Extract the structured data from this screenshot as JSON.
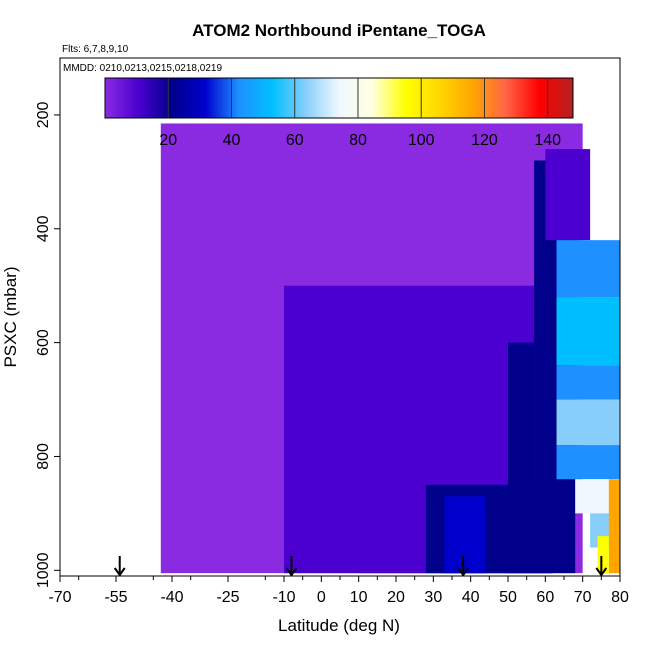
{
  "chart_data": {
    "type": "heatmap",
    "title": "ATOM2 Northbound iPentane_TOGA",
    "flights_note": "Flts: 6,7,8,9,10",
    "dates_note": "MMDD: 0210,0213,0215,0218,0219",
    "xlabel": "Latitude (deg N)",
    "ylabel": "PSXC (mbar)",
    "xlim": [
      -70,
      80
    ],
    "ylim": [
      1010,
      100
    ],
    "x_ticks": [
      "-70",
      "-55",
      "-40",
      "-25",
      "-10",
      "0",
      "10",
      "20",
      "30",
      "40",
      "50",
      "60",
      "70",
      "80"
    ],
    "y_ticks": [
      "200",
      "400",
      "600",
      "800",
      "1000"
    ],
    "colorbar": {
      "range": [
        0,
        148
      ],
      "ticks": [
        "20",
        "40",
        "60",
        "80",
        "100",
        "120",
        "140"
      ],
      "colors": [
        "#8a2be2",
        "#4b00d0",
        "#00008b",
        "#0000cd",
        "#1e90ff",
        "#00bfff",
        "#87cefa",
        "#f0f8ff",
        "#ffffe0",
        "#ffff00",
        "#ffd700",
        "#ffa500",
        "#ff6347",
        "#ff0000",
        "#b22222"
      ]
    },
    "cells": [
      {
        "lat0": -43,
        "lat1": 70,
        "p0": 215,
        "p1": 1005,
        "v": 3
      },
      {
        "lat0": -10,
        "lat1": 60,
        "p0": 500,
        "p1": 1005,
        "v": 10
      },
      {
        "lat0": 10,
        "lat1": 62,
        "p0": 750,
        "p1": 1005,
        "v": 15
      },
      {
        "lat0": 28,
        "lat1": 62,
        "p0": 850,
        "p1": 1005,
        "v": 24
      },
      {
        "lat0": 33,
        "lat1": 44,
        "p0": 870,
        "p1": 1005,
        "v": 28
      },
      {
        "lat0": 50,
        "lat1": 57,
        "p0": 600,
        "p1": 1005,
        "v": 22
      },
      {
        "lat0": 57,
        "lat1": 68,
        "p0": 280,
        "p1": 1005,
        "v": 20
      },
      {
        "lat0": 60,
        "lat1": 72,
        "p0": 260,
        "p1": 420,
        "v": 15
      },
      {
        "lat0": 63,
        "lat1": 80,
        "p0": 420,
        "p1": 520,
        "v": 45
      },
      {
        "lat0": 63,
        "lat1": 80,
        "p0": 520,
        "p1": 640,
        "v": 55
      },
      {
        "lat0": 63,
        "lat1": 80,
        "p0": 640,
        "p1": 700,
        "v": 40
      },
      {
        "lat0": 63,
        "lat1": 80,
        "p0": 700,
        "p1": 780,
        "v": 60
      },
      {
        "lat0": 63,
        "lat1": 80,
        "p0": 780,
        "p1": 840,
        "v": 45
      },
      {
        "lat0": 68,
        "lat1": 80,
        "p0": 840,
        "p1": 900,
        "v": 70
      },
      {
        "lat0": 72,
        "lat1": 80,
        "p0": 900,
        "p1": 960,
        "v": 65
      },
      {
        "lat0": 77,
        "lat1": 80,
        "p0": 840,
        "p1": 1005,
        "v": 115
      },
      {
        "lat0": 74,
        "lat1": 77,
        "p0": 940,
        "p1": 1005,
        "v": 95
      }
    ],
    "arrows_lat": [
      -54,
      -8,
      38,
      75
    ]
  }
}
